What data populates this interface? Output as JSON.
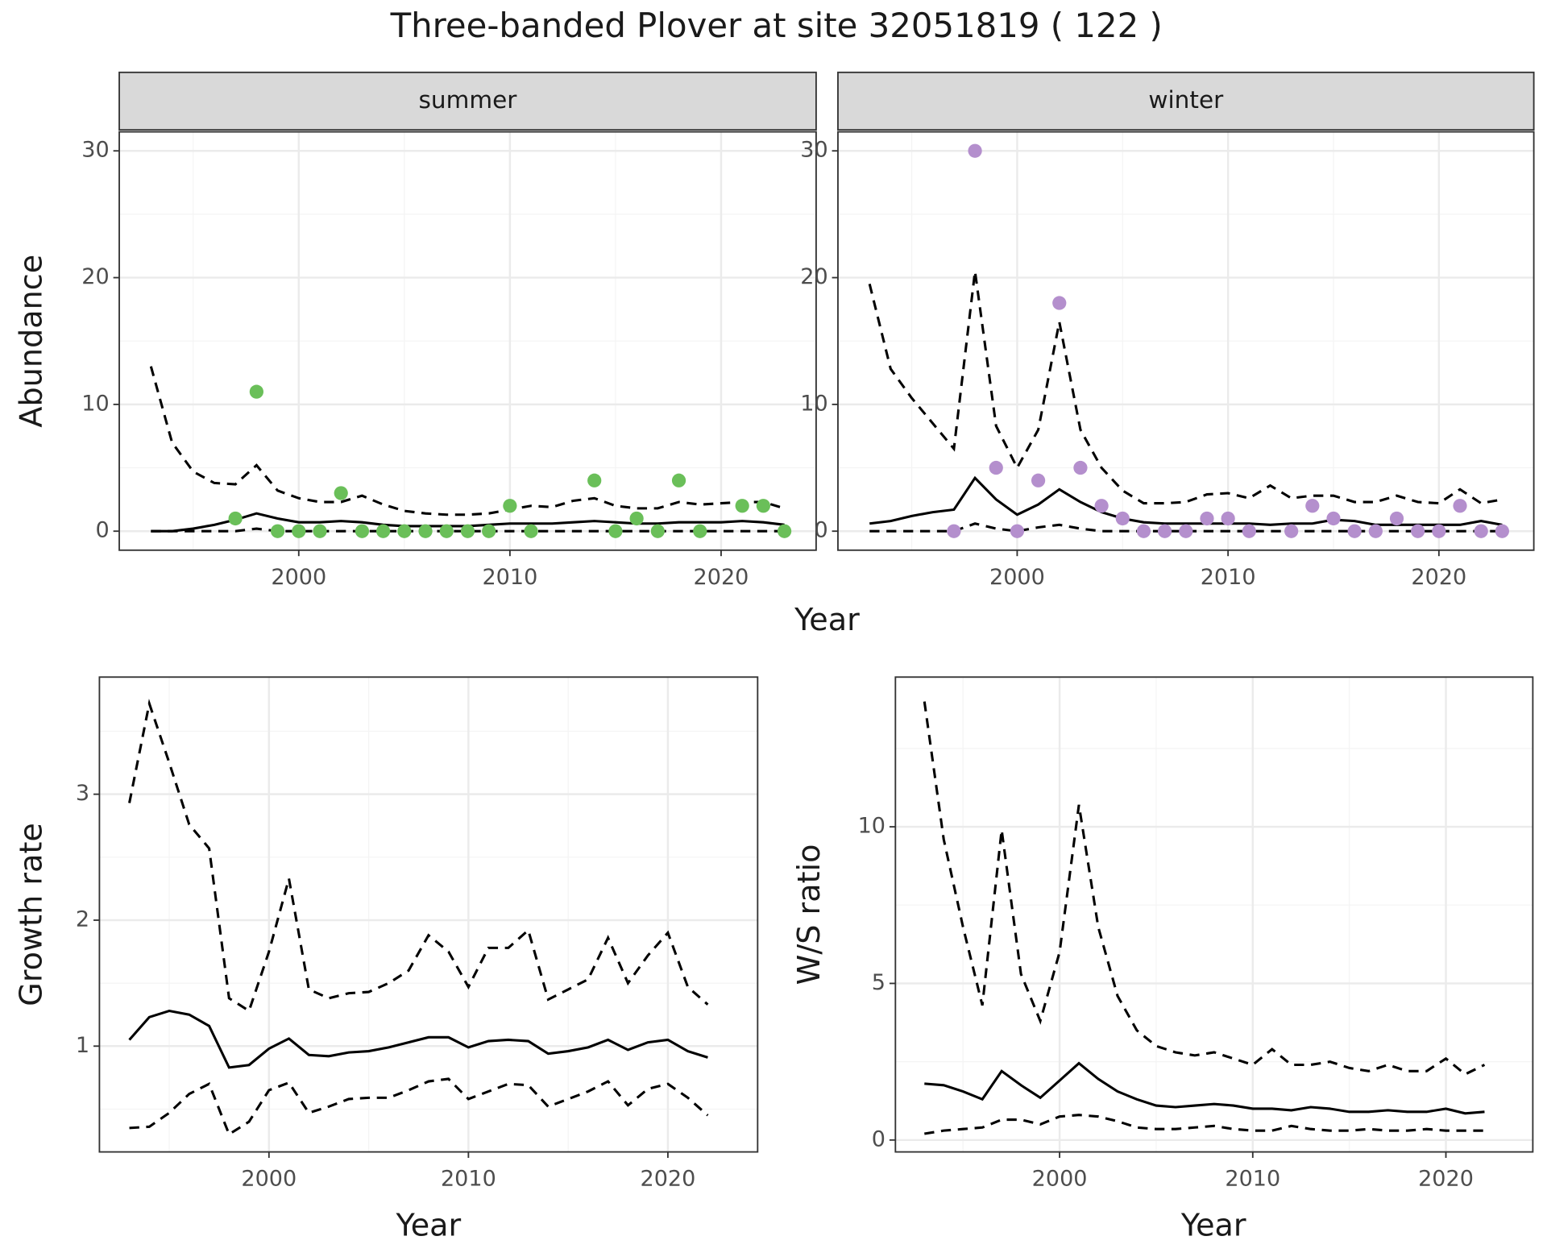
{
  "title": "Three-banded Plover at site 32051819 ( 122 )",
  "chart_data": [
    {
      "type": "line",
      "strip": "summer",
      "ylabel": "Abundance",
      "xlabel": "Year",
      "xlim": [
        1991.5,
        2024.5
      ],
      "ylim": [
        -1.5,
        31.5
      ],
      "xticks": [
        2000,
        2010,
        2020
      ],
      "x_minor_ticks": [
        1995,
        2005,
        2015
      ],
      "yticks": [
        0,
        10,
        20,
        30
      ],
      "y_minor_ticks": [
        5,
        15,
        25
      ],
      "grid": true,
      "x": [
        1993,
        1994,
        1995,
        1996,
        1997,
        1998,
        1999,
        2000,
        2001,
        2002,
        2003,
        2004,
        2005,
        2006,
        2007,
        2008,
        2009,
        2010,
        2011,
        2012,
        2013,
        2014,
        2015,
        2016,
        2017,
        2018,
        2019,
        2020,
        2021,
        2022,
        2023
      ],
      "series": [
        {
          "type": "line",
          "style": "solid",
          "color": "#000000",
          "values": [
            0,
            0,
            0.2,
            0.5,
            0.9,
            1.4,
            1.0,
            0.7,
            0.7,
            0.8,
            0.7,
            0.5,
            0.4,
            0.4,
            0.4,
            0.4,
            0.5,
            0.6,
            0.6,
            0.6,
            0.7,
            0.8,
            0.7,
            0.6,
            0.6,
            0.7,
            0.7,
            0.7,
            0.8,
            0.7,
            0.5
          ]
        },
        {
          "type": "line",
          "style": "dashed",
          "color": "#000000",
          "values": [
            13,
            7,
            4.7,
            3.8,
            3.7,
            5.2,
            3.2,
            2.6,
            2.3,
            2.3,
            2.8,
            2.1,
            1.6,
            1.4,
            1.3,
            1.3,
            1.4,
            1.7,
            2.0,
            1.9,
            2.4,
            2.6,
            2.0,
            1.8,
            1.8,
            2.3,
            2.1,
            2.2,
            2.3,
            2.3,
            1.8
          ]
        },
        {
          "type": "line",
          "style": "dashed",
          "color": "#000000",
          "values": [
            0,
            0,
            0,
            0,
            0,
            0.2,
            0,
            0,
            0,
            0,
            0,
            0,
            0,
            0,
            0,
            0,
            0,
            0,
            0,
            0,
            0,
            0,
            0,
            0,
            0,
            0,
            0,
            0,
            0,
            0,
            0
          ]
        },
        {
          "type": "scatter",
          "color": "#6abf59",
          "x": [
            1997,
            1998,
            1999,
            2000,
            2001,
            2002,
            2003,
            2004,
            2005,
            2006,
            2007,
            2008,
            2009,
            2010,
            2011,
            2014,
            2015,
            2016,
            2017,
            2018,
            2019,
            2021,
            2022,
            2023
          ],
          "values": [
            1,
            11,
            0,
            0,
            0,
            3,
            0,
            0,
            0,
            0,
            0,
            0,
            0,
            2,
            0,
            4,
            0,
            1,
            0,
            4,
            0,
            2,
            2,
            0
          ]
        }
      ]
    },
    {
      "type": "line",
      "strip": "winter",
      "xlim": [
        1991.5,
        2024.5
      ],
      "ylim": [
        -1.5,
        31.5
      ],
      "xticks": [
        2000,
        2010,
        2020
      ],
      "x_minor_ticks": [
        1995,
        2005,
        2015
      ],
      "yticks": [
        0,
        10,
        20,
        30
      ],
      "y_minor_ticks": [
        5,
        15,
        25
      ],
      "grid": true,
      "x": [
        1993,
        1994,
        1995,
        1996,
        1997,
        1998,
        1999,
        2000,
        2001,
        2002,
        2003,
        2004,
        2005,
        2006,
        2007,
        2008,
        2009,
        2010,
        2011,
        2012,
        2013,
        2014,
        2015,
        2016,
        2017,
        2018,
        2019,
        2020,
        2021,
        2022,
        2023
      ],
      "series": [
        {
          "type": "line",
          "style": "solid",
          "color": "#000000",
          "values": [
            0.6,
            0.8,
            1.2,
            1.5,
            1.7,
            4.2,
            2.5,
            1.3,
            2.1,
            3.3,
            2.3,
            1.5,
            1.0,
            0.7,
            0.6,
            0.6,
            0.6,
            0.6,
            0.6,
            0.5,
            0.6,
            0.6,
            0.9,
            0.8,
            0.5,
            0.5,
            0.5,
            0.5,
            0.5,
            0.8,
            0.5
          ]
        },
        {
          "type": "line",
          "style": "dashed",
          "color": "#000000",
          "values": [
            19.5,
            12.8,
            10.5,
            8.5,
            6.5,
            20.5,
            8.3,
            5.0,
            8.0,
            16.5,
            8.0,
            5.0,
            3.2,
            2.2,
            2.2,
            2.3,
            2.9,
            3.0,
            2.6,
            3.6,
            2.6,
            2.8,
            2.8,
            2.3,
            2.3,
            2.8,
            2.3,
            2.2,
            3.3,
            2.2,
            2.5
          ]
        },
        {
          "type": "line",
          "style": "dashed",
          "color": "#000000",
          "values": [
            0,
            0,
            0,
            0,
            0,
            0.6,
            0.2,
            0,
            0.3,
            0.5,
            0.2,
            0,
            0,
            0,
            0,
            0,
            0,
            0,
            0,
            0,
            0,
            0,
            0,
            0,
            0,
            0,
            0,
            0,
            0,
            0,
            0
          ]
        },
        {
          "type": "scatter",
          "color": "#b48fcd",
          "x": [
            1997,
            1998,
            1999,
            2000,
            2001,
            2002,
            2003,
            2004,
            2005,
            2006,
            2007,
            2008,
            2009,
            2010,
            2011,
            2013,
            2014,
            2015,
            2016,
            2017,
            2018,
            2019,
            2020,
            2021,
            2022,
            2023
          ],
          "values": [
            0,
            30,
            5,
            0,
            4,
            18,
            5,
            2,
            1,
            0,
            0,
            0,
            1,
            1,
            0,
            0,
            2,
            1,
            0,
            0,
            1,
            0,
            0,
            2,
            0,
            0
          ]
        }
      ]
    },
    {
      "type": "line",
      "ylabel": "Growth rate",
      "xlabel": "Year",
      "xlim": [
        1991.5,
        2024.5
      ],
      "ylim": [
        0.16,
        3.93
      ],
      "xticks": [
        2000,
        2010,
        2020
      ],
      "x_minor_ticks": [
        1995,
        2005,
        2015
      ],
      "yticks": [
        1,
        2,
        3
      ],
      "y_minor_ticks": [
        0.5,
        1.5,
        2.5,
        3.5
      ],
      "grid": true,
      "x": [
        1993,
        1994,
        1995,
        1996,
        1997,
        1998,
        1999,
        2000,
        2001,
        2002,
        2003,
        2004,
        2005,
        2006,
        2007,
        2008,
        2009,
        2010,
        2011,
        2012,
        2013,
        2014,
        2015,
        2016,
        2017,
        2018,
        2019,
        2020,
        2021,
        2022
      ],
      "series": [
        {
          "type": "line",
          "style": "solid",
          "color": "#000000",
          "values": [
            1.05,
            1.23,
            1.28,
            1.25,
            1.16,
            0.83,
            0.85,
            0.98,
            1.06,
            0.93,
            0.92,
            0.95,
            0.96,
            0.99,
            1.03,
            1.07,
            1.07,
            0.99,
            1.04,
            1.05,
            1.04,
            0.94,
            0.96,
            0.99,
            1.05,
            0.97,
            1.03,
            1.05,
            0.96,
            0.91
          ]
        },
        {
          "type": "line",
          "style": "dashed",
          "color": "#000000",
          "values": [
            2.93,
            3.72,
            3.25,
            2.76,
            2.57,
            1.38,
            1.28,
            1.75,
            2.33,
            1.45,
            1.38,
            1.42,
            1.43,
            1.5,
            1.6,
            1.88,
            1.75,
            1.47,
            1.78,
            1.78,
            1.92,
            1.37,
            1.45,
            1.53,
            1.86,
            1.5,
            1.72,
            1.9,
            1.47,
            1.33
          ]
        },
        {
          "type": "line",
          "style": "dashed",
          "color": "#000000",
          "values": [
            0.35,
            0.36,
            0.47,
            0.62,
            0.7,
            0.3,
            0.4,
            0.65,
            0.71,
            0.47,
            0.52,
            0.58,
            0.59,
            0.59,
            0.65,
            0.72,
            0.74,
            0.58,
            0.64,
            0.7,
            0.69,
            0.52,
            0.58,
            0.64,
            0.72,
            0.53,
            0.66,
            0.7,
            0.59,
            0.45
          ]
        }
      ]
    },
    {
      "type": "line",
      "ylabel": "W/S ratio",
      "xlabel": "Year",
      "xlim": [
        1991.5,
        2024.5
      ],
      "ylim": [
        -0.38,
        14.78
      ],
      "xticks": [
        2000,
        2010,
        2020
      ],
      "x_minor_ticks": [
        1995,
        2005,
        2015
      ],
      "yticks": [
        0,
        5,
        10
      ],
      "y_minor_ticks": [
        2.5,
        7.5,
        12.5
      ],
      "grid": true,
      "x": [
        1993,
        1994,
        1995,
        1996,
        1997,
        1998,
        1999,
        2000,
        2001,
        2002,
        2003,
        2004,
        2005,
        2006,
        2007,
        2008,
        2009,
        2010,
        2011,
        2012,
        2013,
        2014,
        2015,
        2016,
        2017,
        2018,
        2019,
        2020,
        2021,
        2022
      ],
      "series": [
        {
          "type": "line",
          "style": "solid",
          "color": "#000000",
          "values": [
            1.8,
            1.75,
            1.55,
            1.3,
            2.2,
            1.75,
            1.35,
            1.9,
            2.45,
            1.95,
            1.55,
            1.3,
            1.1,
            1.05,
            1.1,
            1.15,
            1.1,
            1.0,
            1.0,
            0.95,
            1.05,
            1.0,
            0.9,
            0.9,
            0.95,
            0.9,
            0.9,
            1.0,
            0.85,
            0.9
          ]
        },
        {
          "type": "line",
          "style": "dashed",
          "color": "#000000",
          "values": [
            14,
            9.6,
            6.8,
            4.3,
            9.9,
            5.3,
            3.8,
            6.0,
            10.7,
            6.8,
            4.6,
            3.5,
            3.0,
            2.8,
            2.7,
            2.8,
            2.6,
            2.4,
            2.9,
            2.4,
            2.4,
            2.5,
            2.3,
            2.2,
            2.4,
            2.2,
            2.2,
            2.6,
            2.1,
            2.4
          ]
        },
        {
          "type": "line",
          "style": "dashed",
          "color": "#000000",
          "values": [
            0.2,
            0.3,
            0.35,
            0.4,
            0.65,
            0.65,
            0.5,
            0.75,
            0.8,
            0.75,
            0.6,
            0.4,
            0.35,
            0.35,
            0.4,
            0.45,
            0.35,
            0.3,
            0.3,
            0.45,
            0.35,
            0.3,
            0.3,
            0.35,
            0.3,
            0.3,
            0.35,
            0.3,
            0.3,
            0.3
          ]
        }
      ]
    }
  ]
}
